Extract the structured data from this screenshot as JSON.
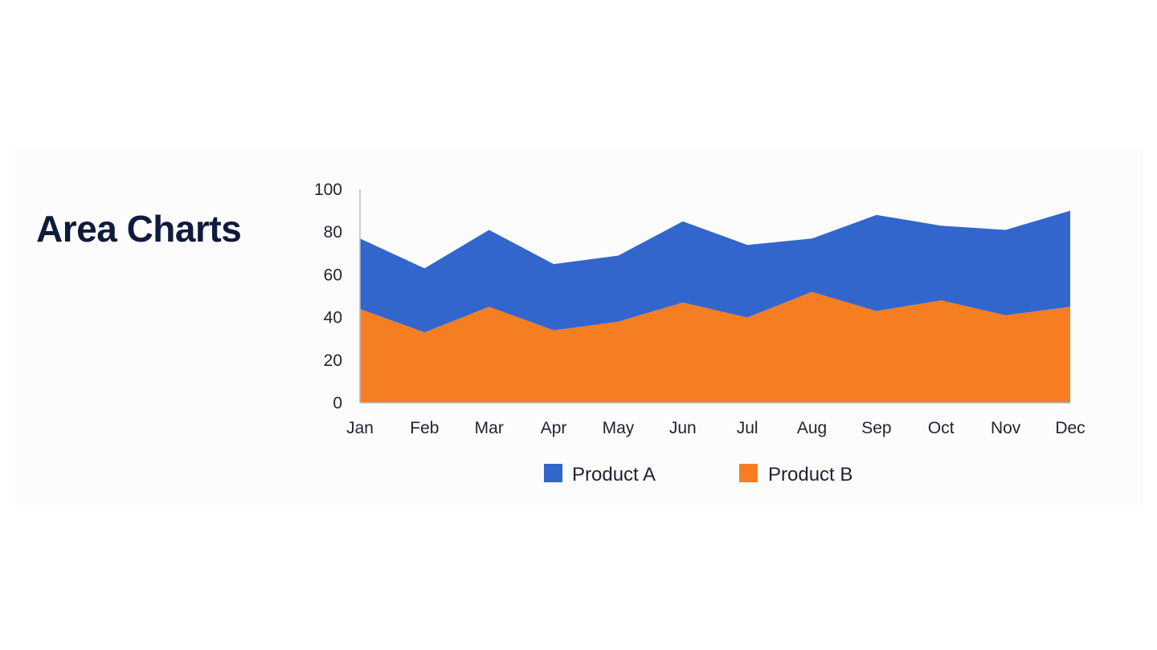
{
  "heading": "Area Charts",
  "colors": {
    "product_a": "#3366cc",
    "product_b": "#f57e23",
    "axis": "#b9bcc4",
    "text": "#1f2330",
    "heading": "#0f1b3d"
  },
  "chart_data": {
    "type": "area",
    "stacked": true,
    "categories": [
      "Jan",
      "Feb",
      "Mar",
      "Apr",
      "May",
      "Jun",
      "Jul",
      "Aug",
      "Sep",
      "Oct",
      "Nov",
      "Dec"
    ],
    "series": [
      {
        "name": "Product B",
        "values": [
          44,
          33,
          45,
          34,
          38,
          47,
          40,
          52,
          43,
          48,
          41,
          45
        ]
      },
      {
        "name": "Product A",
        "values": [
          33,
          30,
          36,
          31,
          31,
          38,
          34,
          25,
          45,
          35,
          40,
          45
        ]
      }
    ],
    "ylim": [
      0,
      100
    ],
    "yticks": [
      0,
      20,
      40,
      60,
      80,
      100
    ],
    "title": "",
    "xlabel": "",
    "ylabel": "",
    "grid": false,
    "legend": {
      "position": "bottom",
      "entries": [
        "Product A",
        "Product B"
      ]
    }
  }
}
